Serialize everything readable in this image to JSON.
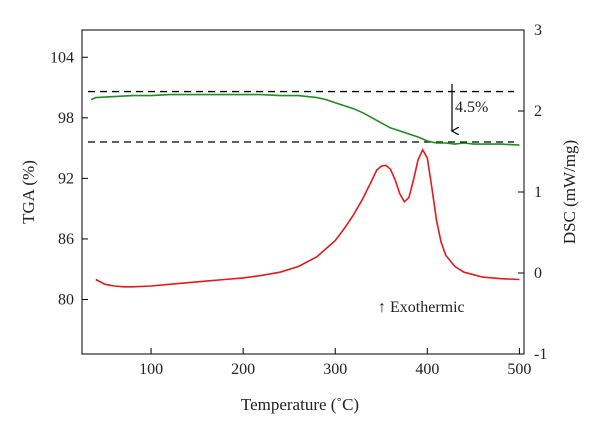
{
  "chart_data": {
    "type": "line",
    "xlabel": "Temperature (˚C)",
    "ylabel_left": "TGA (%)",
    "ylabel_right": "DSC (mW/mg)",
    "xlim": [
      25,
      505
    ],
    "ylim_left": [
      74.6,
      106.7
    ],
    "ylim_right": [
      -1,
      3
    ],
    "x_ticks": [
      100,
      200,
      300,
      400,
      500
    ],
    "y_ticks_left": [
      80,
      86,
      92,
      98,
      104
    ],
    "y_ticks_right": [
      -1,
      0,
      1,
      2,
      3
    ],
    "grid": false,
    "colors": {
      "tga": "#228b22",
      "dsc": "#e01b1b",
      "reference_lines": "#000000"
    },
    "series": [
      {
        "axis": "left",
        "x": [
          35,
          40,
          60,
          80,
          100,
          120,
          140,
          160,
          180,
          200,
          220,
          240,
          260,
          270,
          280,
          290,
          300,
          310,
          320,
          330,
          340,
          350,
          360,
          370,
          380,
          390,
          400,
          410,
          420,
          430,
          440,
          450,
          460,
          480,
          500
        ],
        "y": [
          99.8,
          100.0,
          100.1,
          100.2,
          100.2,
          100.3,
          100.3,
          100.3,
          100.3,
          100.3,
          100.3,
          100.2,
          100.2,
          100.1,
          100.0,
          99.8,
          99.5,
          99.2,
          98.9,
          98.5,
          98.0,
          97.5,
          97.0,
          96.7,
          96.4,
          96.1,
          95.7,
          95.5,
          95.5,
          95.4,
          95.5,
          95.4,
          95.4,
          95.4,
          95.3
        ]
      },
      {
        "axis": "right",
        "x": [
          40,
          50,
          60,
          70,
          80,
          100,
          120,
          140,
          160,
          180,
          200,
          220,
          240,
          260,
          280,
          300,
          310,
          320,
          330,
          340,
          345,
          350,
          355,
          360,
          365,
          370,
          375,
          380,
          385,
          390,
          395,
          400,
          405,
          410,
          415,
          420,
          430,
          440,
          460,
          480,
          500
        ],
        "y": [
          -0.08,
          -0.14,
          -0.16,
          -0.17,
          -0.17,
          -0.16,
          -0.14,
          -0.12,
          -0.1,
          -0.08,
          -0.06,
          -0.03,
          0.01,
          0.08,
          0.2,
          0.4,
          0.55,
          0.72,
          0.92,
          1.15,
          1.27,
          1.32,
          1.33,
          1.28,
          1.15,
          0.98,
          0.88,
          0.93,
          1.15,
          1.4,
          1.52,
          1.42,
          1.05,
          0.65,
          0.38,
          0.22,
          0.08,
          0.01,
          -0.05,
          -0.07,
          -0.08
        ]
      }
    ],
    "reference_lines": [
      {
        "axis": "left",
        "y": 100.6
      },
      {
        "axis": "left",
        "y": 95.6
      }
    ],
    "annotations": [
      {
        "text": "4.5%"
      },
      {
        "text": "↑ Exothermic"
      }
    ]
  }
}
